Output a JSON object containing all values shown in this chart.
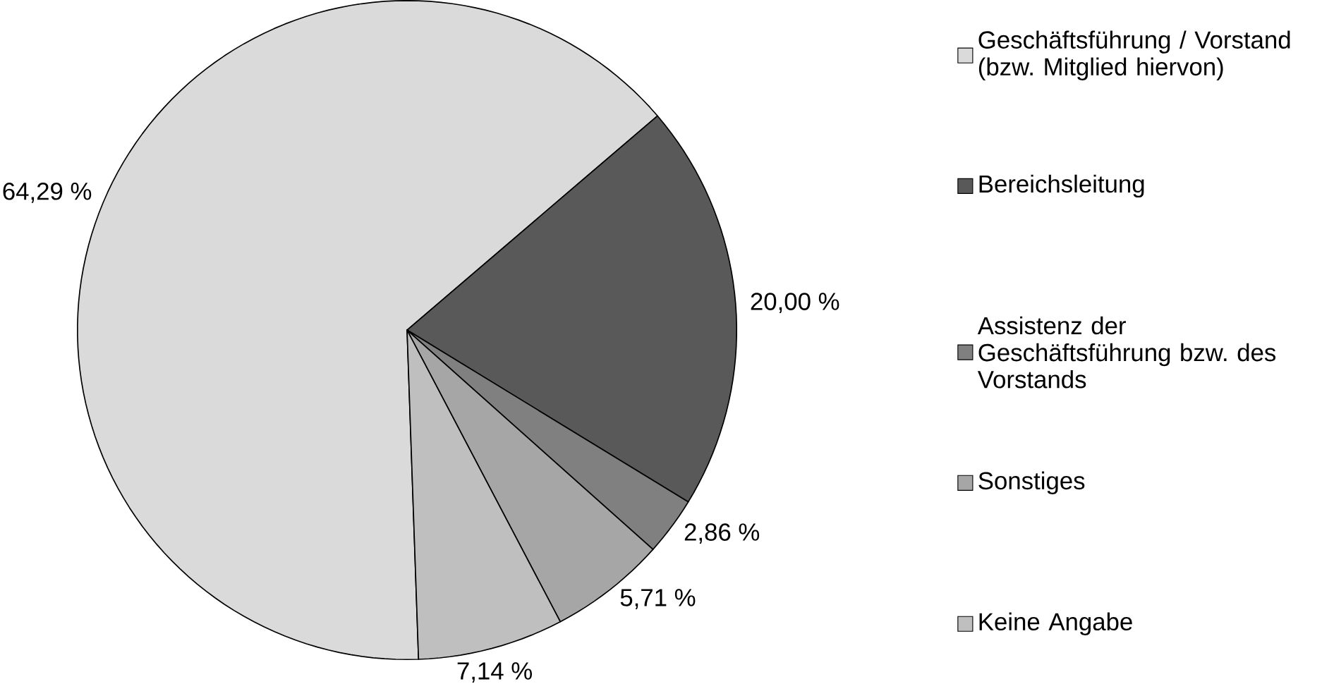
{
  "chart_data": {
    "type": "pie",
    "categories": [
      "Geschäftsführung / Vorstand (bzw. Mitglied hiervon)",
      "Bereichsleitung",
      "Assistenz der Geschäftsführung bzw. des Vorstands",
      "Sonstiges",
      "Keine Angabe"
    ],
    "values": [
      64.29,
      20.0,
      2.86,
      5.71,
      7.14
    ],
    "colors": [
      "#dadada",
      "#595959",
      "#808080",
      "#a6a6a6",
      "#bfbfbf"
    ],
    "value_labels": [
      "64,29 %",
      "20,00 %",
      "2,86 %",
      "5,71 %",
      "7,14 %"
    ],
    "legend": "right"
  }
}
